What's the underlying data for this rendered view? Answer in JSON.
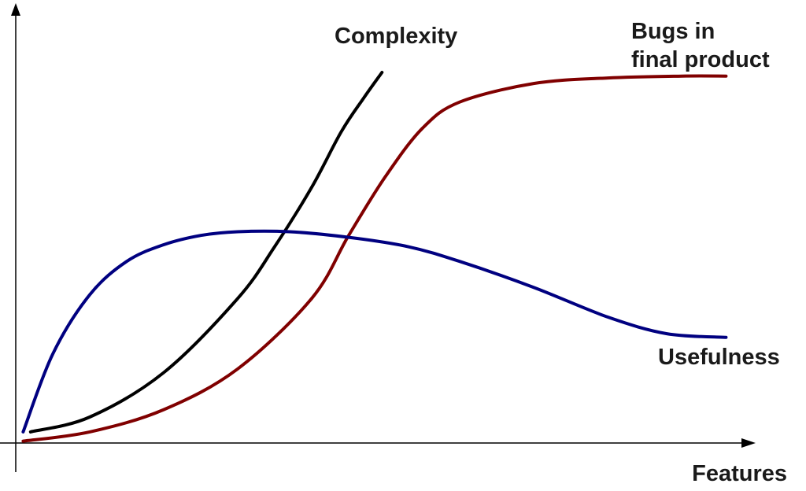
{
  "chart_data": {
    "type": "line",
    "title": "",
    "xlabel": "Features",
    "ylabel": "",
    "xlim": [
      0,
      100
    ],
    "ylim": [
      0,
      100
    ],
    "grid": false,
    "legend": "none",
    "series": [
      {
        "name": "Complexity",
        "color": "#000000",
        "x": [
          2,
          10,
          20,
          30,
          35,
          40,
          44,
          47,
          49.5
        ],
        "y": [
          3,
          7,
          19,
          39,
          53,
          69,
          84,
          93,
          100
        ]
      },
      {
        "name": "Bugs in final product",
        "color": "#800000",
        "x": [
          1,
          10,
          20,
          30,
          40,
          45,
          50,
          55,
          60,
          70,
          80,
          90,
          96
        ],
        "y": [
          0.5,
          3,
          9,
          20,
          39,
          56,
          72,
          85,
          92,
          97,
          98.5,
          99,
          99
        ]
      },
      {
        "name": "Usefulness",
        "color": "#000080",
        "x": [
          1,
          5,
          10,
          15,
          20,
          25,
          30,
          37,
          45,
          53,
          60,
          70,
          80,
          88,
          96
        ],
        "y": [
          3,
          24,
          40,
          49,
          53.5,
          56,
          57,
          57,
          55.5,
          53,
          49,
          42,
          34,
          29.5,
          28.5
        ]
      }
    ]
  }
}
